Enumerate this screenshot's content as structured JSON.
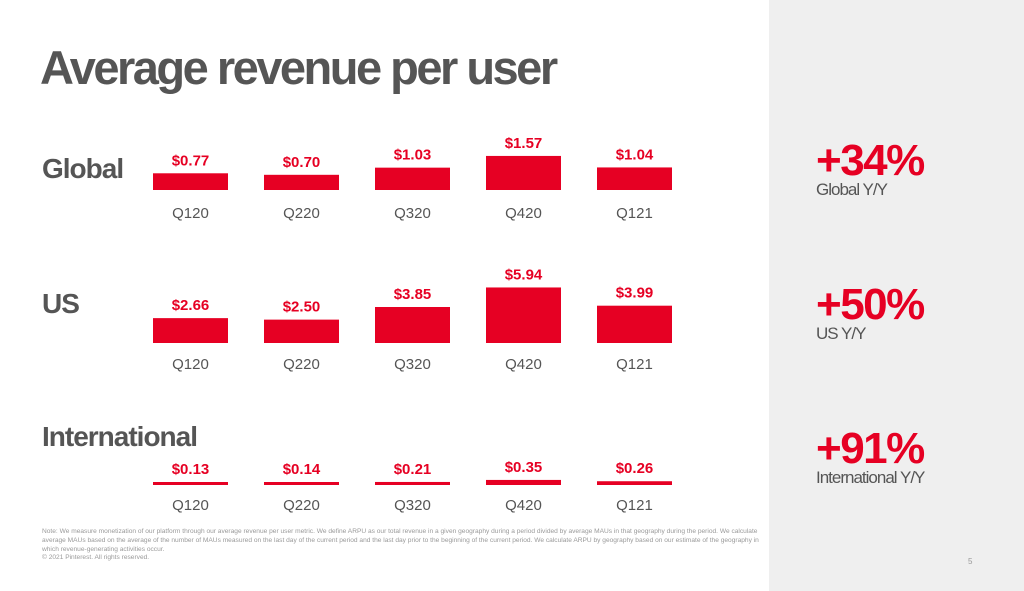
{
  "title": "Average revenue per user",
  "accent_color": "#e60023",
  "chart_data": [
    {
      "type": "bar",
      "name": "Global",
      "categories": [
        "Q120",
        "Q220",
        "Q320",
        "Q420",
        "Q121"
      ],
      "values": [
        0.77,
        0.7,
        1.03,
        1.57,
        1.04
      ],
      "labels": [
        "$0.77",
        "$0.70",
        "$1.03",
        "$1.57",
        "$1.04"
      ]
    },
    {
      "type": "bar",
      "name": "US",
      "categories": [
        "Q120",
        "Q220",
        "Q320",
        "Q420",
        "Q121"
      ],
      "values": [
        2.66,
        2.5,
        3.85,
        5.94,
        3.99
      ],
      "labels": [
        "$2.66",
        "$2.50",
        "$3.85",
        "$5.94",
        "$3.99"
      ]
    },
    {
      "type": "bar",
      "name": "International",
      "categories": [
        "Q120",
        "Q220",
        "Q320",
        "Q420",
        "Q121"
      ],
      "values": [
        0.13,
        0.14,
        0.21,
        0.35,
        0.26
      ],
      "labels": [
        "$0.13",
        "$0.14",
        "$0.21",
        "$0.35",
        "$0.26"
      ]
    }
  ],
  "stats": [
    {
      "value": "+34%",
      "label": "Global Y/Y"
    },
    {
      "value": "+50%",
      "label": "US Y/Y"
    },
    {
      "value": "+91%",
      "label": "International Y/Y"
    }
  ],
  "footnote": {
    "note": "Note: We measure monetization of our platform through our average revenue per user metric. We define ARPU as our total revenue in a given geography during a period divided by average MAUs in that geography during the period. We calculate average MAUs based on the average of the number of MAUs measured on the last day of the current period and the last day prior to the beginning of the current period. We calculate ARPU by geography based on our estimate of the geography in which revenue-generating activities occur.",
    "copyright": "© 2021 Pinterest. All rights reserved."
  },
  "page_number": "5"
}
